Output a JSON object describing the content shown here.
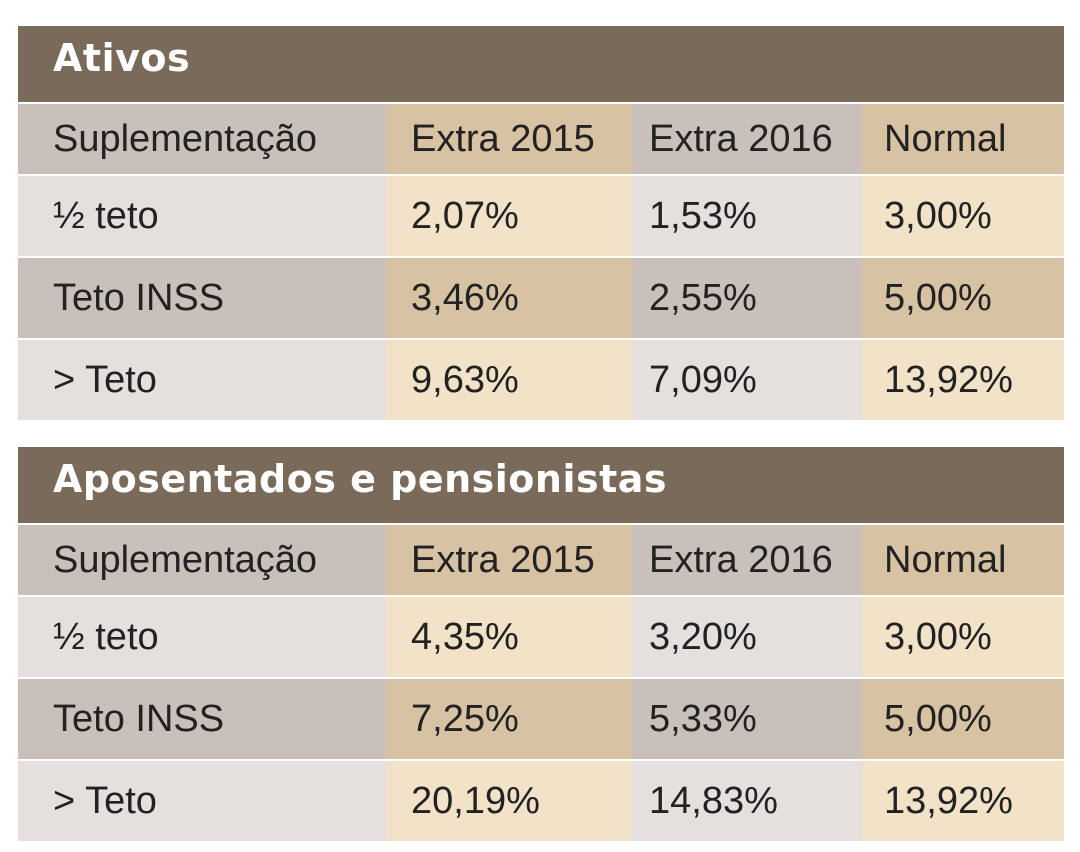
{
  "tables": [
    {
      "title": "Ativos",
      "header": [
        "Suplementação",
        "Extra 2015",
        "Extra 2016",
        "Normal"
      ],
      "rows": [
        [
          "½ teto",
          "2,07%",
          "1,53%",
          "3,00%"
        ],
        [
          "Teto INSS",
          "3,46%",
          "2,55%",
          "5,00%"
        ],
        [
          "> Teto",
          "9,63%",
          "7,09%",
          "13,92%"
        ]
      ]
    },
    {
      "title": "Aposentados e pensionistas",
      "header": [
        "Suplementação",
        "Extra 2015",
        "Extra 2016",
        "Normal"
      ],
      "rows": [
        [
          "½ teto",
          "4,35%",
          "3,20%",
          "3,00%"
        ],
        [
          "Teto INSS",
          "7,25%",
          "5,33%",
          "5,00%"
        ],
        [
          "> Teto",
          "20,19%",
          "14,83%",
          "13,92%"
        ]
      ]
    }
  ],
  "colors": {
    "title_bg": "#7a6a59",
    "gray_dark": "#c9c0bc",
    "gray_light": "#e5e0dd",
    "tan_dark": "#d7c3a3",
    "tan_light": "#f2e3c8"
  }
}
